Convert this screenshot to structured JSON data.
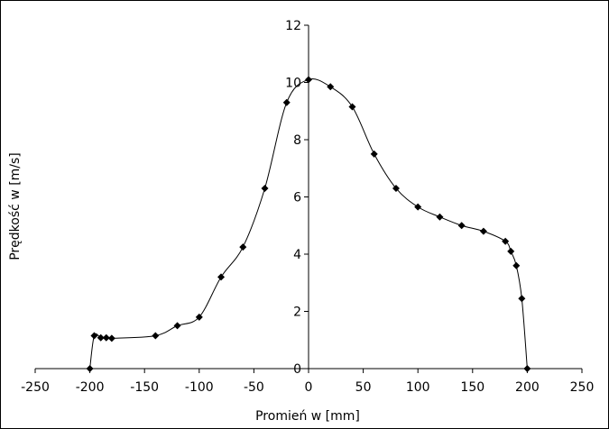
{
  "chart_data": {
    "type": "scatter",
    "title": "",
    "xlabel": "Promień w [mm]",
    "ylabel": "Prędkość w [m/s]",
    "xlim": [
      -250,
      250
    ],
    "ylim": [
      0,
      12
    ],
    "xticks": [
      -250,
      -200,
      -150,
      -100,
      -50,
      0,
      50,
      100,
      150,
      200,
      250
    ],
    "yticks": [
      0,
      2,
      4,
      6,
      8,
      10,
      12
    ],
    "grid": false,
    "legend": "none",
    "line_color": "#000000",
    "marker": "diamond",
    "series": [
      {
        "values_xy": [
          [
            -200,
            0.0
          ],
          [
            -196,
            1.15
          ],
          [
            -190,
            1.08
          ],
          [
            -185,
            1.08
          ],
          [
            -180,
            1.06
          ],
          [
            -140,
            1.15
          ],
          [
            -120,
            1.5
          ],
          [
            -100,
            1.8
          ],
          [
            -80,
            3.2
          ],
          [
            -60,
            4.25
          ],
          [
            -40,
            6.3
          ],
          [
            -20,
            9.3
          ],
          [
            0,
            10.1
          ],
          [
            20,
            9.85
          ],
          [
            40,
            9.15
          ],
          [
            60,
            7.5
          ],
          [
            80,
            6.3
          ],
          [
            100,
            5.65
          ],
          [
            120,
            5.3
          ],
          [
            140,
            5.0
          ],
          [
            160,
            4.8
          ],
          [
            180,
            4.45
          ],
          [
            185,
            4.1
          ],
          [
            190,
            3.6
          ],
          [
            195,
            2.45
          ],
          [
            200,
            0.0
          ]
        ]
      }
    ]
  }
}
